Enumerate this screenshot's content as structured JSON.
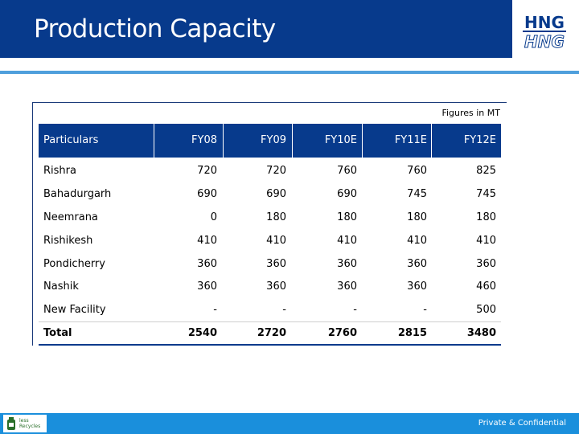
{
  "header": {
    "title": "Production Capacity",
    "logo_top": "HNG",
    "logo_bottom": "HNG"
  },
  "table": {
    "note": "Figures in MT",
    "columns": [
      "Particulars",
      "FY08",
      "FY09",
      "FY10E",
      "FY11E",
      "FY12E"
    ],
    "rows": [
      {
        "label": "Rishra",
        "values": [
          "720",
          "720",
          "760",
          "760",
          "825"
        ]
      },
      {
        "label": "Bahadurgarh",
        "values": [
          "690",
          "690",
          "690",
          "745",
          "745"
        ]
      },
      {
        "label": "Neemrana",
        "values": [
          "0",
          "180",
          "180",
          "180",
          "180"
        ]
      },
      {
        "label": "Rishikesh",
        "values": [
          "410",
          "410",
          "410",
          "410",
          "410"
        ]
      },
      {
        "label": "Pondicherry",
        "values": [
          "360",
          "360",
          "360",
          "360",
          "360"
        ]
      },
      {
        "label": "Nashik",
        "values": [
          "360",
          "360",
          "360",
          "360",
          "460"
        ]
      },
      {
        "label": "New Facility",
        "values": [
          "-",
          "-",
          "-",
          "-",
          "500"
        ]
      }
    ],
    "total": {
      "label": "Total",
      "values": [
        "2540",
        "2720",
        "2760",
        "2815",
        "3480"
      ]
    }
  },
  "footer": {
    "badge_line1": "less",
    "badge_line2": "Recycles",
    "confidential": "Private & Confidential"
  },
  "colors": {
    "header_blue": "#073a8c",
    "accent_blue": "#4f9fdc",
    "footer_blue": "#1a8fdc"
  },
  "icons": [
    "hng-logo-icon",
    "recycle-icon"
  ]
}
